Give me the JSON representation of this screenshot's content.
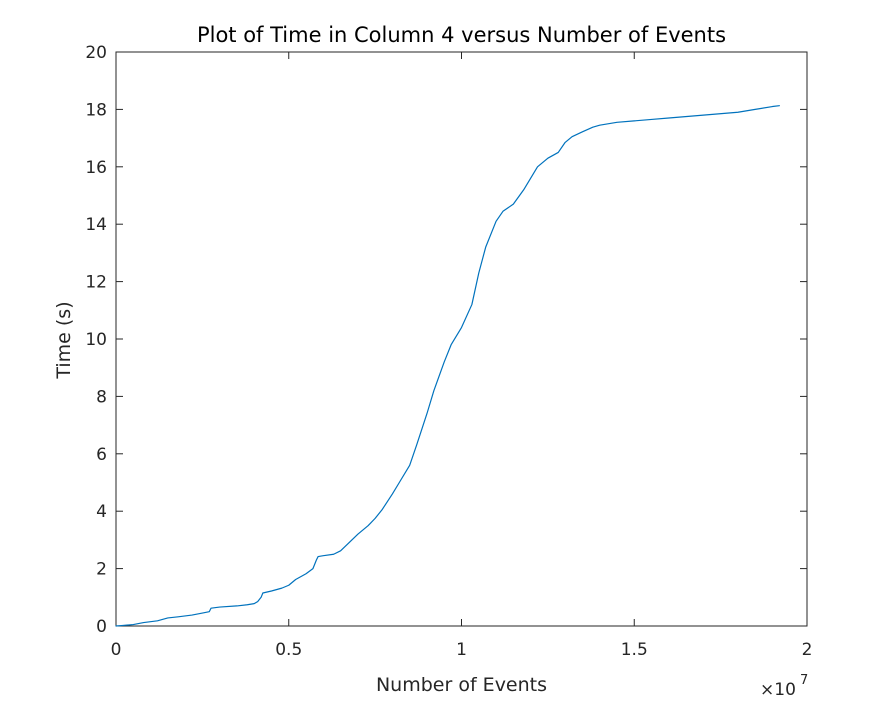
{
  "chart_data": {
    "type": "line",
    "title": "Plot of Time in Column 4 versus Number of Events",
    "xlabel": "Number of Events",
    "ylabel": "Time (s)",
    "x_exponent_base": "×10",
    "x_exponent_power": "7",
    "xlim": [
      0,
      2
    ],
    "ylim": [
      0,
      20
    ],
    "xticks": [
      0,
      0.5,
      1,
      1.5,
      2
    ],
    "xtick_labels": [
      "0",
      "0.5",
      "1",
      "1.5",
      "2"
    ],
    "yticks": [
      0,
      2,
      4,
      6,
      8,
      10,
      12,
      14,
      16,
      18,
      20
    ],
    "ytick_labels": [
      "0",
      "2",
      "4",
      "6",
      "8",
      "10",
      "12",
      "14",
      "16",
      "18",
      "20"
    ],
    "grid": false,
    "line_color": "#0072BD",
    "axis_color": "#262626",
    "series": [
      {
        "x": [
          0,
          0.02,
          0.05,
          0.08,
          0.12,
          0.15,
          0.18,
          0.22,
          0.25,
          0.27,
          0.275,
          0.3,
          0.35,
          0.38,
          0.4,
          0.41,
          0.42,
          0.425,
          0.45,
          0.48,
          0.5,
          0.52,
          0.55,
          0.57,
          0.58,
          0.585,
          0.6,
          0.63,
          0.65,
          0.67,
          0.7,
          0.73,
          0.75,
          0.77,
          0.8,
          0.82,
          0.85,
          0.87,
          0.9,
          0.92,
          0.95,
          0.97,
          1.0,
          1.03,
          1.05,
          1.07,
          1.1,
          1.12,
          1.15,
          1.18,
          1.2,
          1.22,
          1.25,
          1.28,
          1.3,
          1.32,
          1.35,
          1.38,
          1.4,
          1.45,
          1.5,
          1.55,
          1.6,
          1.7,
          1.8,
          1.85,
          1.9,
          1.92
        ],
        "y": [
          0,
          0.02,
          0.05,
          0.12,
          0.18,
          0.28,
          0.32,
          0.38,
          0.45,
          0.5,
          0.62,
          0.66,
          0.7,
          0.74,
          0.78,
          0.85,
          1.0,
          1.15,
          1.22,
          1.32,
          1.42,
          1.62,
          1.82,
          2.0,
          2.3,
          2.42,
          2.45,
          2.5,
          2.62,
          2.85,
          3.2,
          3.5,
          3.75,
          4.05,
          4.6,
          5.0,
          5.6,
          6.3,
          7.4,
          8.2,
          9.2,
          9.8,
          10.4,
          11.2,
          12.3,
          13.2,
          14.1,
          14.45,
          14.7,
          15.2,
          15.6,
          16.0,
          16.3,
          16.5,
          16.85,
          17.05,
          17.22,
          17.38,
          17.45,
          17.55,
          17.6,
          17.65,
          17.7,
          17.8,
          17.9,
          18.0,
          18.1,
          18.13
        ]
      }
    ]
  }
}
